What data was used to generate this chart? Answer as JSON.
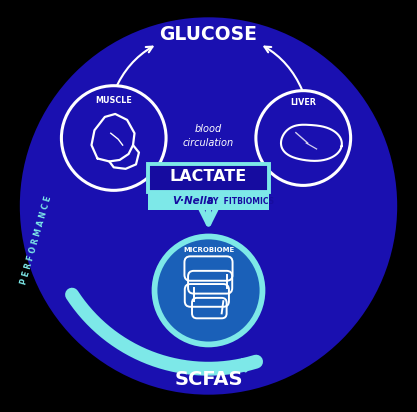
{
  "bg_color": "#1a10b0",
  "dark_blue": "#160ca0",
  "light_cyan": "#7de8e8",
  "white": "#ffffff",
  "glucose_text": "GLUCOSE",
  "muscle_text": "MUSCLE",
  "liver_text": "LIVER",
  "microbiome_text": "MICROBIOME",
  "lactate_text": "LACTATE",
  "vnella_text": "V·Nella",
  "by_fitbiomics_text": " BY  FITBIOMICS",
  "blood_circ_text": "blood\ncirculation",
  "performance_text": "P E R F O R M A N C E",
  "scfas_text": "SCFAS"
}
